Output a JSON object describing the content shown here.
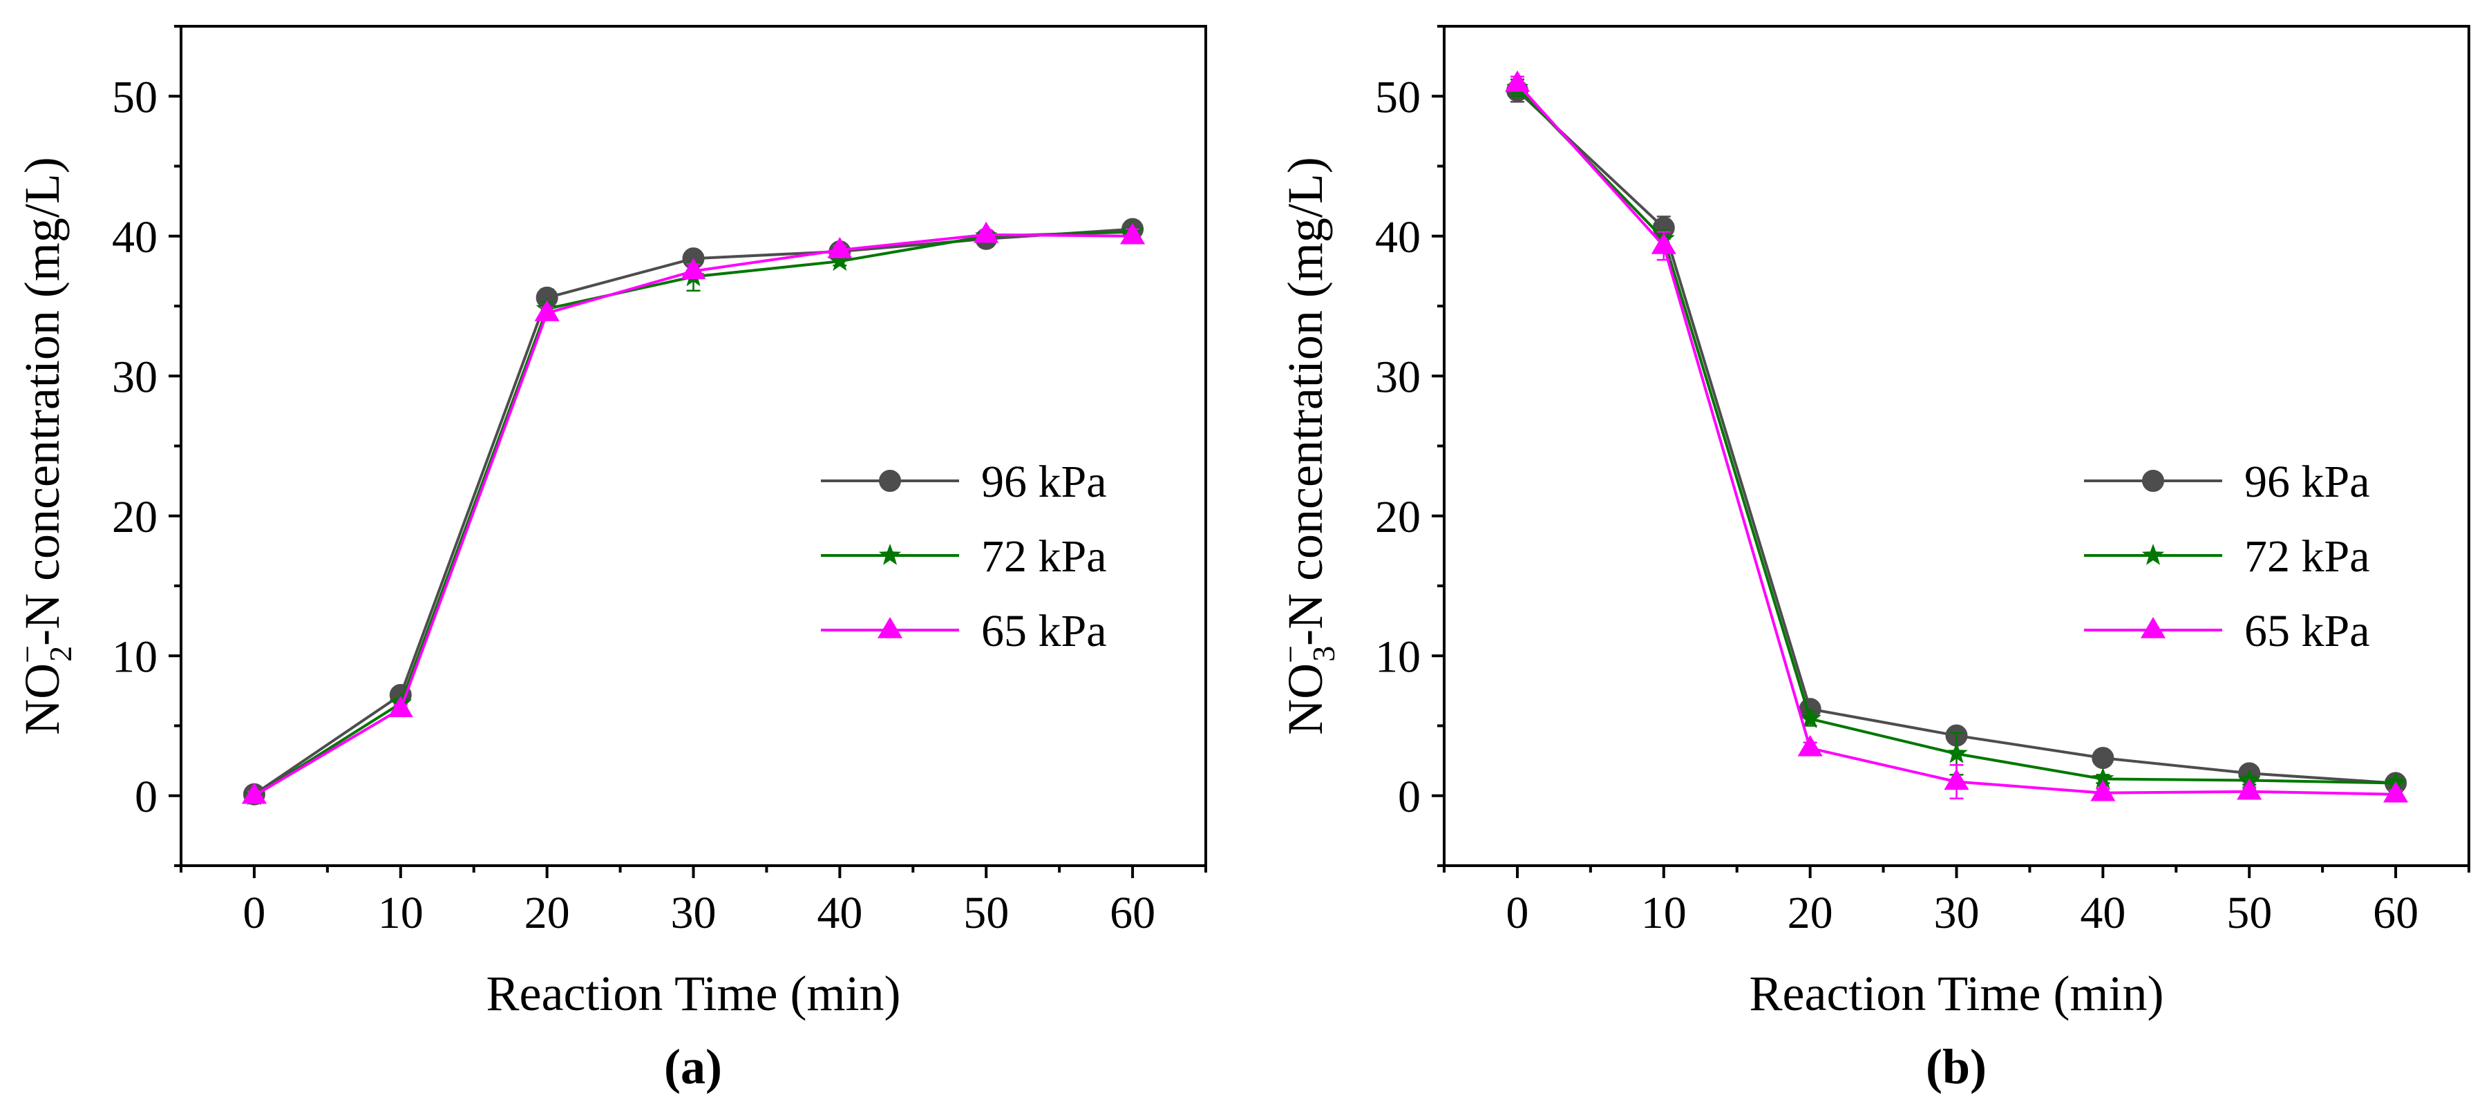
{
  "chart_data": [
    {
      "panel": "(a)",
      "type": "line",
      "xlabel": "Reaction Time (min)",
      "ylabel": {
        "prefix": "NO",
        "sub": "2",
        "sup": "−",
        "suffix": "-N concentration (mg/L)"
      },
      "xlim": [
        -5,
        65
      ],
      "ylim": [
        -5,
        55
      ],
      "xticks": [
        0,
        10,
        20,
        30,
        40,
        50,
        60
      ],
      "yticks": [
        0,
        10,
        20,
        30,
        40,
        50
      ],
      "legend_position": "center-right",
      "x": [
        0,
        10,
        20,
        30,
        40,
        50,
        60
      ],
      "series": [
        {
          "name": "96 kPa",
          "color": "#4d4d4d",
          "marker": "circle",
          "values": [
            0.1,
            7.2,
            35.6,
            38.4,
            38.9,
            39.8,
            40.5
          ],
          "errors": [
            0.3,
            0.3,
            0.6,
            0.5,
            0.3,
            0.3,
            0.3
          ]
        },
        {
          "name": "72 kPa",
          "color": "#007700",
          "marker": "star",
          "values": [
            0.0,
            6.6,
            34.8,
            37.1,
            38.2,
            40.0,
            40.3
          ],
          "errors": [
            0.3,
            0.3,
            0.5,
            1.0,
            0.3,
            0.3,
            0.3
          ]
        },
        {
          "name": "65 kPa",
          "color": "#ff00ff",
          "marker": "triangle",
          "values": [
            0.0,
            6.2,
            34.5,
            37.5,
            39.0,
            40.1,
            40.0
          ],
          "errors": [
            0.3,
            0.3,
            0.4,
            0.5,
            0.3,
            0.3,
            0.5
          ]
        }
      ]
    },
    {
      "panel": "(b)",
      "type": "line",
      "xlabel": "Reaction Time (min)",
      "ylabel": {
        "prefix": "NO",
        "sub": "3",
        "sup": "−",
        "suffix": "-N concentration (mg/L)"
      },
      "xlim": [
        -5,
        65
      ],
      "ylim": [
        -5,
        55
      ],
      "xticks": [
        0,
        10,
        20,
        30,
        40,
        50,
        60
      ],
      "yticks": [
        0,
        10,
        20,
        30,
        40,
        50
      ],
      "legend_position": "center-right",
      "x": [
        0,
        10,
        20,
        30,
        40,
        50,
        60
      ],
      "series": [
        {
          "name": "96 kPa",
          "color": "#4d4d4d",
          "marker": "circle",
          "values": [
            50.4,
            40.6,
            6.2,
            4.3,
            2.7,
            1.6,
            0.9
          ],
          "errors": [
            0.8,
            0.8,
            0.5,
            0.5,
            0.3,
            0.3,
            0.3
          ]
        },
        {
          "name": "72 kPa",
          "color": "#007700",
          "marker": "star",
          "values": [
            50.6,
            39.8,
            5.5,
            3.0,
            1.2,
            1.1,
            0.9
          ],
          "errors": [
            0.6,
            0.6,
            0.5,
            1.5,
            0.3,
            0.3,
            0.3
          ]
        },
        {
          "name": "65 kPa",
          "color": "#ff00ff",
          "marker": "triangle",
          "values": [
            50.9,
            39.3,
            3.4,
            1.0,
            0.2,
            0.3,
            0.1
          ],
          "errors": [
            0.5,
            1.0,
            0.4,
            1.2,
            0.3,
            0.3,
            0.3
          ]
        }
      ]
    }
  ]
}
